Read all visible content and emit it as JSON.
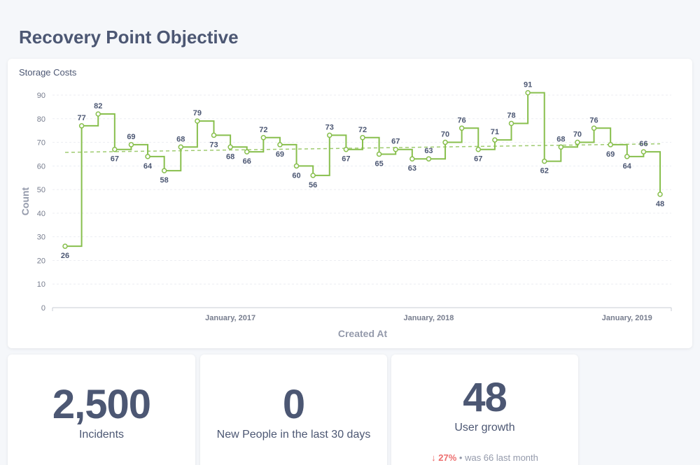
{
  "page": {
    "title": "Recovery Point Objective"
  },
  "chart_card": {
    "title": "Storage Costs"
  },
  "chart_data": {
    "type": "line",
    "interpolation": "step",
    "xlabel": "Created At",
    "ylabel": "Count",
    "ylim": [
      0,
      90
    ],
    "yticks": [
      0,
      10,
      20,
      30,
      40,
      50,
      60,
      70,
      80,
      90
    ],
    "xticks": [
      "January, 2017",
      "January, 2018",
      "January, 2019"
    ],
    "grid": true,
    "trendline": true,
    "series": [
      {
        "name": "",
        "color": "#88bf4d",
        "values": [
          26,
          77,
          82,
          67,
          69,
          64,
          58,
          68,
          79,
          73,
          68,
          66,
          72,
          69,
          60,
          56,
          73,
          67,
          72,
          65,
          67,
          63,
          63,
          70,
          76,
          67,
          71,
          78,
          91,
          62,
          68,
          70,
          76,
          69,
          64,
          66,
          48
        ]
      }
    ]
  },
  "scalars": [
    {
      "value": "2,500",
      "label": "Incidents"
    },
    {
      "value": "0",
      "label": "New People in the last 30 days"
    },
    {
      "value": "48",
      "label": "User growth",
      "trend": {
        "arrow": "↓",
        "percent": "27%",
        "separator": "•",
        "previous": "was 66",
        "period": "last month"
      }
    }
  ],
  "colors": {
    "accent": "#88bf4d",
    "trend_down": "#ed6e6e",
    "text": "#4c5773",
    "muted": "#949aab"
  }
}
